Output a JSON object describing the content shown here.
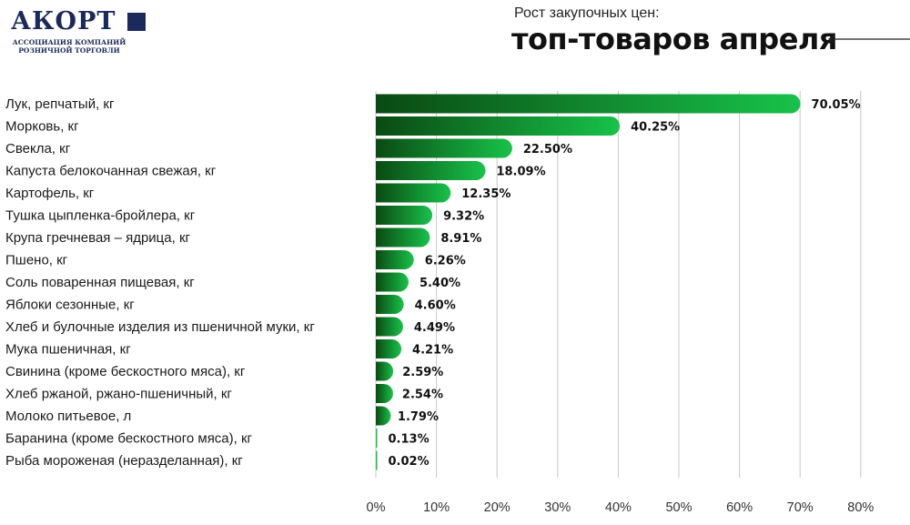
{
  "logo": {
    "name": "АКОРТ",
    "line1": "АССОЦИАЦИЯ КОМПАНИЙ",
    "line2": "РОЗНИЧНОЙ ТОРГОВЛИ"
  },
  "header": {
    "subtitle": "Рост закупочных цен:",
    "title": "топ-товаров апреля"
  },
  "colors": {
    "bar_dark": "#0a4a12",
    "bar_light": "#18c24a",
    "grid": "#c8c8c8",
    "logo": "#1b2a5a"
  },
  "chart_data": {
    "type": "bar",
    "orientation": "horizontal",
    "categories": [
      "Лук, репчатый, кг",
      "Морковь, кг",
      "Свекла, кг",
      "Капуста белокочанная свежая, кг",
      "Картофель, кг",
      "Тушка цыпленка-бройлера, кг",
      "Крупа гречневая – ядрица, кг",
      "Пшено, кг",
      "Соль поваренная пищевая, кг",
      "Яблоки сезонные, кг",
      "Хлеб и булочные изделия из пшеничной муки, кг",
      "Мука пшеничная, кг",
      "Свинина (кроме бескостного мяса), кг",
      "Хлеб ржаной, ржано-пшеничный, кг",
      "Молоко питьевое, л",
      "Баранина (кроме бескостного мяса), кг",
      "Рыба мороженая (неразделанная), кг"
    ],
    "values": [
      70.05,
      40.25,
      22.5,
      18.09,
      12.35,
      9.32,
      8.91,
      6.26,
      5.4,
      4.6,
      4.49,
      4.21,
      2.59,
      2.54,
      1.79,
      0.13,
      0.02
    ],
    "value_labels": [
      "70.05%",
      "40.25%",
      "22.50%",
      "18.09%",
      "12.35%",
      "9.32%",
      "8.91%",
      "6.26%",
      "5.40%",
      "4.60%",
      "4.49%",
      "4.21%",
      "2.59%",
      "2.54%",
      "1.79%",
      "0.13%",
      "0.02%"
    ],
    "x_ticks": [
      0,
      10,
      20,
      30,
      40,
      50,
      60,
      70,
      80
    ],
    "x_tick_labels": [
      "0%",
      "10%",
      "20%",
      "30%",
      "40%",
      "50%",
      "60%",
      "70%",
      "80%"
    ],
    "xlim": [
      0,
      80
    ],
    "grid": true
  }
}
